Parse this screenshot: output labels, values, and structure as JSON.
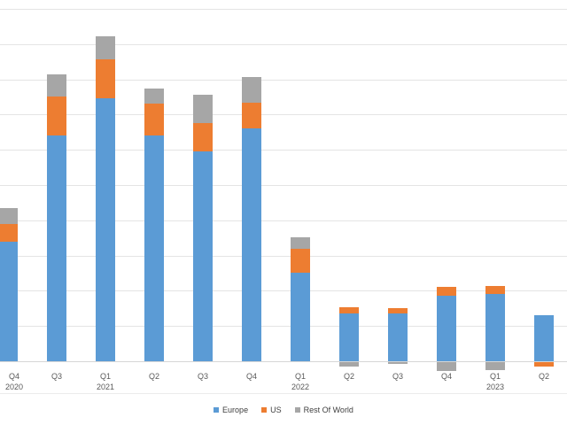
{
  "chart_data": {
    "type": "bar",
    "stacked": true,
    "title": "",
    "categories": [
      "Q4 2020",
      "Q3",
      "Q1 2021",
      "Q2",
      "Q3",
      "Q4",
      "Q1 2022",
      "Q2",
      "Q3",
      "Q4",
      "Q1 2023",
      "Q2"
    ],
    "series": [
      {
        "name": "Europe",
        "color": "#5B9BD5",
        "values": [
          3.4,
          6.4,
          7.45,
          6.4,
          5.95,
          6.6,
          2.5,
          1.35,
          1.35,
          1.85,
          1.9,
          1.3
        ]
      },
      {
        "name": "US",
        "color": "#ED7D31",
        "values": [
          0.5,
          1.1,
          1.1,
          0.9,
          0.8,
          0.73,
          0.68,
          0.18,
          0.15,
          0.25,
          0.23,
          -0.13
        ]
      },
      {
        "name": "Rest Of World",
        "color": "#A6A6A6",
        "values": [
          0.45,
          0.63,
          0.65,
          0.43,
          0.8,
          0.73,
          0.33,
          -0.13,
          -0.05,
          -0.25,
          -0.23,
          0
        ]
      }
    ],
    "ylim": [
      -0.5,
      10.25
    ],
    "gridline_interval": 1,
    "grid": true,
    "y_axis_labels_visible": false,
    "legend_position": "bottom-center"
  },
  "x_axis": {
    "labels": [
      {
        "quarter": "Q4",
        "year": "2020"
      },
      {
        "quarter": "Q3",
        "year": ""
      },
      {
        "quarter": "Q1",
        "year": "2021"
      },
      {
        "quarter": "Q2",
        "year": ""
      },
      {
        "quarter": "Q3",
        "year": ""
      },
      {
        "quarter": "Q4",
        "year": ""
      },
      {
        "quarter": "Q1",
        "year": "2022"
      },
      {
        "quarter": "Q2",
        "year": ""
      },
      {
        "quarter": "Q3",
        "year": ""
      },
      {
        "quarter": "Q4",
        "year": ""
      },
      {
        "quarter": "Q1",
        "year": "2023"
      },
      {
        "quarter": "Q2",
        "year": ""
      }
    ]
  },
  "colors": {
    "background": "#FFFFFF",
    "gridline": "#E4E4E4",
    "axis_line": "#D6D6D6",
    "divider_line": "#ECECEC",
    "label_text": "#595959"
  }
}
